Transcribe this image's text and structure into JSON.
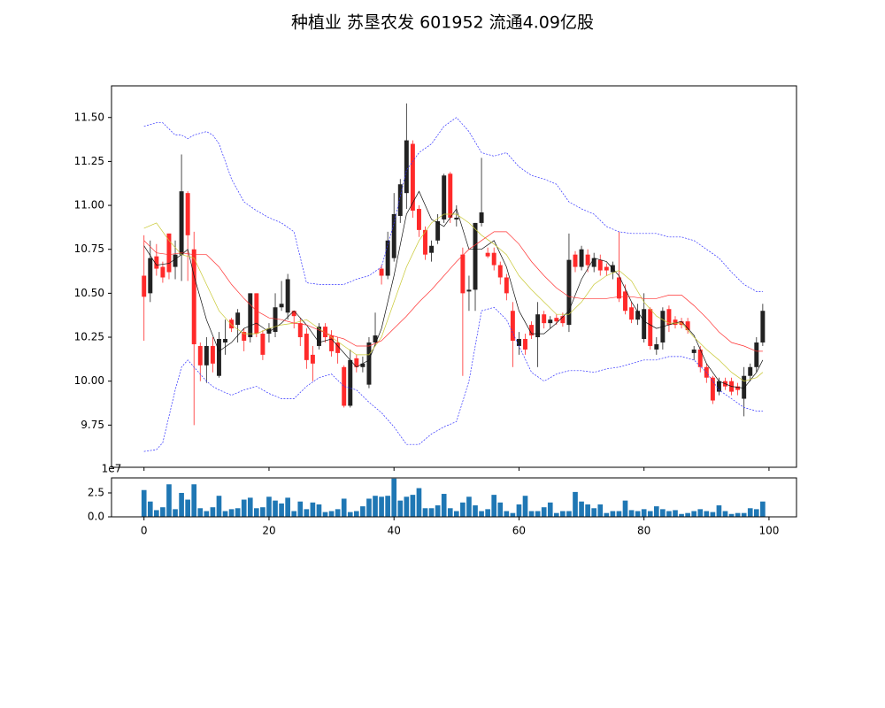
{
  "chart_data": [
    {
      "type": "candlestick",
      "title": "种植业 苏垦农发 601952 流通4.09亿股",
      "up_color": "#222222",
      "down_color": "#ff2a2a",
      "open": [
        10.6,
        10.5,
        10.71,
        10.65,
        10.84,
        10.65,
        10.72,
        11.07,
        10.75,
        10.2,
        10.09,
        10.2,
        10.03,
        10.22,
        10.35,
        10.32,
        10.28,
        10.25,
        10.5,
        10.27,
        10.27,
        10.28,
        10.42,
        10.39,
        10.4,
        10.33,
        10.27,
        10.15,
        10.2,
        10.31,
        10.26,
        10.22,
        10.08,
        9.86,
        10.13,
        10.08,
        9.98,
        10.22,
        10.64,
        10.6,
        10.7,
        10.94,
        11.07,
        11.35,
        10.98,
        10.86,
        10.73,
        10.8,
        10.92,
        11.18,
        10.92,
        10.72,
        10.51,
        10.52,
        10.9,
        10.73,
        10.73,
        10.66,
        10.59,
        10.4,
        10.2,
        10.24,
        10.32,
        10.25,
        10.38,
        10.33,
        10.36,
        10.37,
        10.32,
        10.72,
        10.65,
        10.72,
        10.65,
        10.69,
        10.65,
        10.62,
        10.59,
        10.51,
        10.42,
        10.35,
        10.24,
        10.41,
        10.18,
        10.22,
        10.41,
        10.35,
        10.34,
        10.34,
        10.16,
        10.18,
        10.08,
        10.02,
        9.94,
        10.0,
        10.0,
        9.97,
        9.9,
        10.03,
        10.08,
        10.22
      ],
      "high": [
        10.83,
        10.8,
        10.78,
        10.68,
        10.84,
        10.8,
        11.29,
        11.08,
        10.85,
        10.22,
        10.25,
        10.25,
        10.28,
        10.35,
        10.36,
        10.41,
        10.3,
        10.5,
        10.5,
        10.29,
        10.33,
        10.5,
        10.57,
        10.61,
        10.4,
        10.36,
        10.3,
        10.2,
        10.33,
        10.33,
        10.29,
        10.25,
        10.09,
        10.18,
        10.15,
        10.14,
        10.25,
        10.39,
        10.66,
        10.85,
        11.07,
        11.15,
        11.58,
        11.37,
        11.0,
        10.88,
        10.8,
        10.95,
        11.18,
        11.19,
        11.0,
        10.76,
        10.6,
        10.9,
        11.27,
        10.76,
        10.76,
        10.68,
        10.61,
        10.45,
        10.28,
        10.27,
        10.34,
        10.45,
        10.4,
        10.37,
        10.38,
        10.39,
        10.84,
        10.74,
        10.77,
        10.75,
        10.73,
        10.72,
        10.67,
        10.68,
        10.85,
        10.55,
        10.45,
        10.44,
        10.5,
        10.42,
        10.25,
        10.42,
        10.43,
        10.37,
        10.36,
        10.36,
        10.2,
        10.2,
        10.1,
        10.03,
        10.02,
        10.02,
        10.02,
        9.99,
        10.08,
        10.1,
        10.25,
        10.44
      ],
      "low": [
        10.23,
        10.45,
        10.6,
        10.56,
        10.58,
        10.58,
        10.57,
        10.57,
        9.75,
        10.0,
        9.99,
        10.05,
        10.02,
        10.15,
        10.28,
        10.22,
        10.17,
        10.22,
        10.25,
        10.12,
        10.22,
        10.25,
        10.4,
        10.35,
        10.3,
        10.2,
        10.07,
        10.0,
        10.18,
        10.22,
        10.14,
        10.1,
        9.85,
        9.85,
        10.05,
        10.05,
        9.96,
        10.2,
        10.55,
        10.58,
        10.68,
        10.9,
        10.98,
        10.93,
        10.82,
        10.69,
        10.68,
        10.78,
        10.9,
        10.9,
        10.88,
        10.03,
        10.4,
        10.4,
        10.88,
        10.7,
        10.63,
        10.55,
        10.46,
        10.08,
        10.15,
        10.15,
        10.24,
        10.08,
        10.3,
        10.3,
        10.32,
        10.31,
        10.28,
        10.62,
        10.63,
        10.62,
        10.62,
        10.6,
        10.6,
        10.58,
        10.45,
        10.38,
        10.33,
        10.32,
        10.22,
        10.18,
        10.15,
        10.18,
        10.28,
        10.3,
        10.3,
        10.27,
        10.12,
        10.05,
        9.99,
        9.87,
        9.92,
        9.95,
        9.92,
        9.92,
        9.8,
        10.0,
        10.05,
        10.2
      ],
      "close": [
        10.48,
        10.7,
        10.64,
        10.59,
        10.62,
        10.72,
        11.08,
        10.83,
        10.21,
        10.09,
        10.2,
        10.1,
        10.24,
        10.24,
        10.3,
        10.39,
        10.23,
        10.5,
        10.27,
        10.15,
        10.3,
        10.42,
        10.44,
        10.58,
        10.37,
        10.25,
        10.12,
        10.1,
        10.31,
        10.25,
        10.17,
        10.16,
        9.86,
        10.12,
        10.08,
        10.1,
        10.22,
        10.26,
        10.6,
        10.8,
        10.95,
        11.12,
        11.37,
        10.97,
        10.86,
        10.72,
        10.77,
        10.91,
        11.17,
        10.93,
        10.93,
        10.5,
        10.52,
        10.9,
        10.96,
        10.71,
        10.66,
        10.59,
        10.5,
        10.23,
        10.24,
        10.18,
        10.26,
        10.38,
        10.33,
        10.35,
        10.34,
        10.33,
        10.69,
        10.65,
        10.75,
        10.66,
        10.7,
        10.63,
        10.63,
        10.66,
        10.47,
        10.4,
        10.35,
        10.4,
        10.41,
        10.2,
        10.21,
        10.4,
        10.32,
        10.32,
        10.32,
        10.29,
        10.18,
        10.08,
        10.02,
        9.89,
        10.0,
        9.97,
        9.94,
        9.95,
        10.03,
        10.08,
        10.22,
        10.4
      ],
      "lines": [
        {
          "color": "#111111",
          "style": "solid",
          "x": [
            0,
            2,
            4,
            6,
            7,
            8,
            10,
            12,
            14,
            16,
            18,
            20,
            22,
            24,
            26,
            28,
            30,
            32,
            34,
            36,
            38,
            40,
            42,
            44,
            46,
            48,
            50,
            52,
            54,
            56,
            58,
            60,
            62,
            64,
            66,
            68,
            70,
            72,
            74,
            76,
            78,
            80,
            82,
            84,
            86,
            88,
            90,
            92,
            94,
            96,
            98,
            99
          ],
          "values": [
            10.77,
            10.66,
            10.67,
            10.72,
            10.75,
            10.6,
            10.35,
            10.17,
            10.22,
            10.3,
            10.33,
            10.28,
            10.33,
            10.4,
            10.32,
            10.22,
            10.24,
            10.16,
            10.08,
            10.12,
            10.3,
            10.6,
            10.95,
            11.08,
            10.92,
            10.88,
            10.98,
            10.75,
            10.75,
            10.8,
            10.65,
            10.4,
            10.27,
            10.27,
            10.33,
            10.4,
            10.58,
            10.7,
            10.68,
            10.6,
            10.45,
            10.34,
            10.3,
            10.32,
            10.34,
            10.26,
            10.1,
            10.0,
            9.97,
            9.96,
            10.05,
            10.12
          ]
        },
        {
          "color": "#c8c832",
          "style": "solid",
          "x": [
            0,
            2,
            4,
            6,
            8,
            10,
            12,
            14,
            16,
            18,
            20,
            22,
            24,
            26,
            28,
            30,
            32,
            34,
            36,
            38,
            40,
            42,
            44,
            46,
            48,
            50,
            52,
            54,
            56,
            58,
            60,
            62,
            64,
            66,
            68,
            70,
            72,
            74,
            76,
            78,
            80,
            82,
            84,
            86,
            88,
            90,
            92,
            94,
            96,
            98,
            99
          ],
          "values": [
            10.87,
            10.9,
            10.8,
            10.72,
            10.7,
            10.55,
            10.4,
            10.32,
            10.27,
            10.27,
            10.3,
            10.32,
            10.33,
            10.35,
            10.3,
            10.25,
            10.2,
            10.15,
            10.15,
            10.25,
            10.45,
            10.65,
            10.8,
            10.9,
            10.95,
            10.95,
            10.9,
            10.83,
            10.78,
            10.72,
            10.6,
            10.52,
            10.45,
            10.38,
            10.38,
            10.45,
            10.55,
            10.6,
            10.63,
            10.57,
            10.45,
            10.37,
            10.33,
            10.33,
            10.25,
            10.18,
            10.12,
            10.05,
            10.0,
            10.02,
            10.05
          ]
        },
        {
          "color": "#ff3030",
          "style": "solid",
          "x": [
            0,
            2,
            4,
            6,
            8,
            10,
            12,
            14,
            16,
            18,
            20,
            22,
            24,
            26,
            28,
            30,
            32,
            34,
            36,
            38,
            40,
            42,
            44,
            46,
            48,
            50,
            52,
            54,
            56,
            58,
            60,
            62,
            64,
            66,
            68,
            70,
            72,
            74,
            76,
            78,
            80,
            82,
            84,
            86,
            88,
            90,
            92,
            94,
            96,
            98,
            99
          ],
          "values": [
            10.8,
            10.73,
            10.72,
            10.73,
            10.72,
            10.72,
            10.65,
            10.55,
            10.47,
            10.4,
            10.36,
            10.35,
            10.33,
            10.32,
            10.29,
            10.26,
            10.24,
            10.2,
            10.2,
            10.23,
            10.3,
            10.37,
            10.45,
            10.52,
            10.6,
            10.68,
            10.75,
            10.8,
            10.85,
            10.85,
            10.78,
            10.68,
            10.6,
            10.53,
            10.48,
            10.47,
            10.47,
            10.47,
            10.48,
            10.48,
            10.47,
            10.47,
            10.49,
            10.49,
            10.43,
            10.36,
            10.28,
            10.22,
            10.2,
            10.17,
            10.17
          ]
        },
        {
          "color": "#3030ff",
          "style": "dashed",
          "x": [
            0,
            2,
            3,
            5,
            6,
            7,
            8,
            10,
            11,
            12,
            14,
            16,
            18,
            20,
            22,
            24,
            26,
            28,
            30,
            32,
            34,
            36,
            38,
            40,
            42,
            44,
            46,
            48,
            50,
            52,
            54,
            56,
            58,
            60,
            62,
            64,
            66,
            68,
            70,
            72,
            74,
            76,
            78,
            80,
            82,
            84,
            86,
            88,
            90,
            92,
            94,
            96,
            98,
            99
          ],
          "values": [
            11.45,
            11.47,
            11.47,
            11.4,
            11.4,
            11.38,
            11.4,
            11.42,
            11.4,
            11.35,
            11.15,
            11.02,
            10.97,
            10.93,
            10.9,
            10.85,
            10.56,
            10.55,
            10.55,
            10.55,
            10.58,
            10.6,
            10.65,
            10.9,
            11.2,
            11.3,
            11.35,
            11.45,
            11.5,
            11.42,
            11.3,
            11.28,
            11.3,
            11.22,
            11.17,
            11.15,
            11.12,
            11.02,
            10.98,
            10.95,
            10.88,
            10.85,
            10.84,
            10.84,
            10.84,
            10.82,
            10.82,
            10.8,
            10.75,
            10.7,
            10.62,
            10.55,
            10.51,
            10.51
          ]
        },
        {
          "color": "#3030ff",
          "style": "dashed",
          "x": [
            0,
            2,
            3,
            5,
            6,
            7,
            8,
            10,
            11,
            12,
            14,
            16,
            18,
            20,
            22,
            24,
            26,
            28,
            30,
            32,
            34,
            36,
            38,
            40,
            42,
            44,
            46,
            48,
            50,
            52,
            54,
            56,
            58,
            60,
            62,
            64,
            66,
            68,
            70,
            72,
            74,
            76,
            78,
            80,
            82,
            84,
            86,
            88,
            90,
            92,
            94,
            96,
            98,
            99
          ],
          "values": [
            9.6,
            9.61,
            9.65,
            9.95,
            10.08,
            10.12,
            10.08,
            10.0,
            9.97,
            9.95,
            9.92,
            9.95,
            9.97,
            9.93,
            9.9,
            9.9,
            9.97,
            10.02,
            10.04,
            9.97,
            9.95,
            9.88,
            9.82,
            9.74,
            9.64,
            9.64,
            9.7,
            9.74,
            9.77,
            10.0,
            10.4,
            10.42,
            10.35,
            10.2,
            10.05,
            10.0,
            10.04,
            10.06,
            10.06,
            10.05,
            10.07,
            10.08,
            10.1,
            10.12,
            10.12,
            10.14,
            10.14,
            10.12,
            10.05,
            9.95,
            9.9,
            9.85,
            9.83,
            9.83
          ]
        }
      ],
      "xlim": [
        -5.2,
        104.4
      ],
      "ylim": [
        9.51,
        11.68
      ],
      "yticks": [
        {
          "value": 9.75,
          "label": "9.75"
        },
        {
          "value": 10,
          "label": "10.00"
        },
        {
          "value": 10.25,
          "label": "10.25"
        },
        {
          "value": 10.5,
          "label": "10.50"
        },
        {
          "value": 10.75,
          "label": "10.75"
        },
        {
          "value": 11,
          "label": "11.00"
        },
        {
          "value": 11.25,
          "label": "11.25"
        },
        {
          "value": 11.5,
          "label": "11.50"
        }
      ]
    },
    {
      "type": "bar",
      "color": "#1f77b4",
      "offset_label": "1e7",
      "values": [
        2.8,
        1.6,
        0.7,
        1.0,
        3.4,
        0.8,
        2.5,
        1.8,
        3.4,
        0.9,
        0.6,
        1.0,
        2.2,
        0.6,
        0.8,
        0.9,
        1.8,
        2.0,
        0.9,
        1.0,
        2.1,
        1.7,
        1.4,
        2.0,
        0.6,
        1.6,
        0.8,
        1.5,
        1.3,
        0.5,
        0.6,
        0.8,
        1.9,
        0.5,
        0.6,
        1.1,
        1.9,
        2.2,
        2.1,
        2.2,
        4.0,
        1.7,
        2.1,
        2.3,
        3.0,
        0.9,
        0.9,
        1.2,
        2.4,
        0.9,
        0.6,
        1.5,
        2.1,
        1.2,
        0.6,
        0.8,
        2.3,
        1.5,
        0.6,
        0.4,
        1.3,
        2.2,
        0.6,
        0.6,
        1.0,
        1.5,
        0.4,
        0.6,
        0.6,
        2.6,
        1.6,
        1.3,
        0.9,
        1.3,
        0.4,
        0.6,
        0.6,
        1.7,
        0.7,
        0.6,
        0.8,
        0.6,
        1.1,
        0.8,
        0.6,
        0.7,
        0.3,
        0.4,
        0.6,
        0.8,
        0.6,
        0.5,
        1.2,
        0.6,
        0.3,
        0.4,
        0.4,
        0.9,
        0.8,
        1.6
      ],
      "xlim": [
        -5.2,
        104.4
      ],
      "ylim": [
        0,
        4.07
      ],
      "xticks": [
        0,
        20,
        40,
        60,
        80,
        100
      ],
      "yticks": [
        {
          "value": 0,
          "label": "0.0"
        },
        2.5
      ]
    }
  ]
}
